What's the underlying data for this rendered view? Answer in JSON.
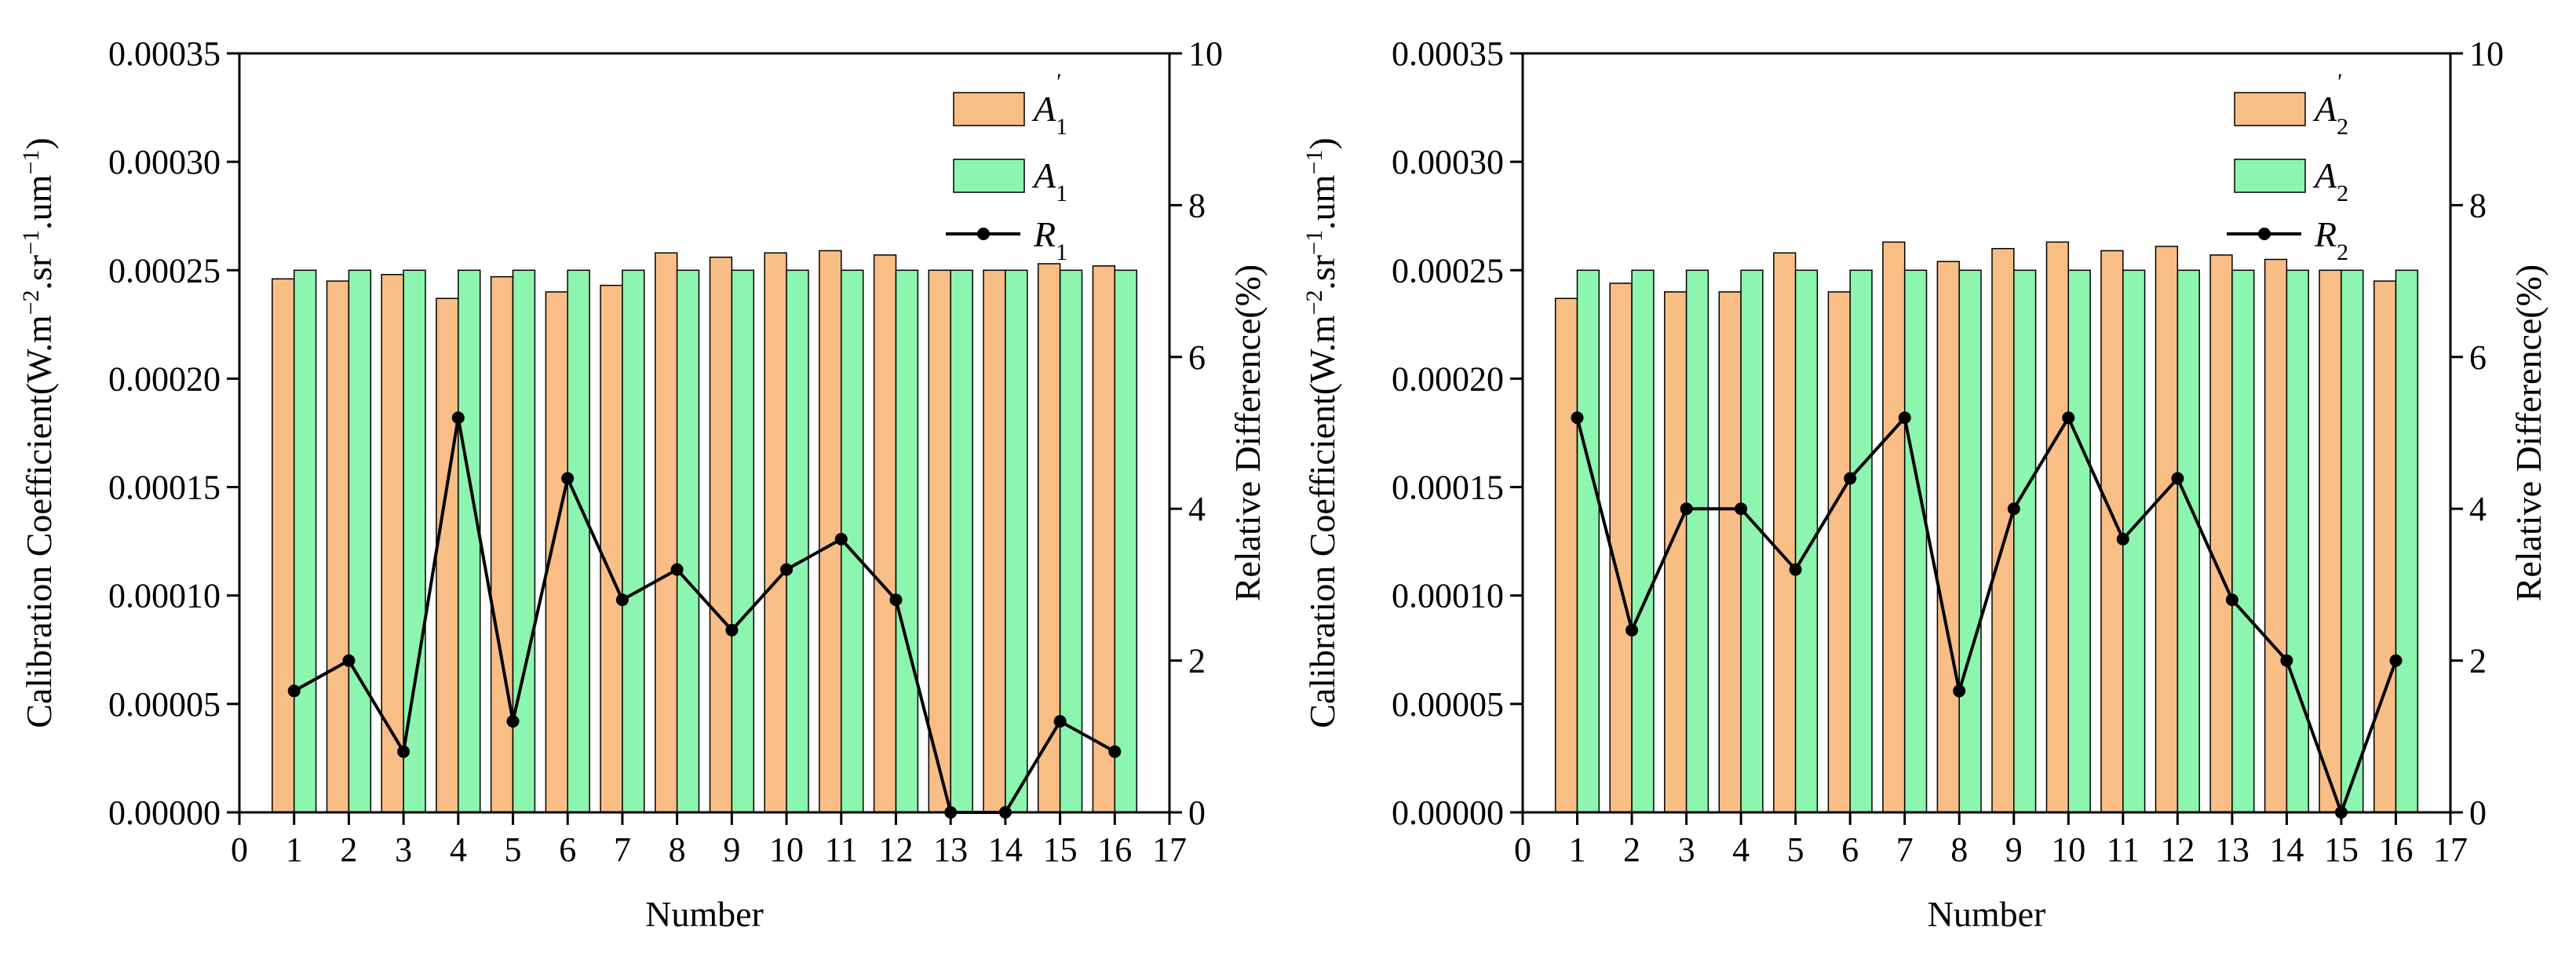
{
  "chart_data": [
    {
      "type": "bar",
      "x": [
        1,
        2,
        3,
        4,
        5,
        6,
        7,
        8,
        9,
        10,
        11,
        12,
        13,
        14,
        15,
        16
      ],
      "xlabel": "Number",
      "ylabel": "Calibration Coefficient(W.m",
      "ylabel_units": [
        "−2",
        ".sr",
        "−1",
        ".um",
        "−1",
        ")"
      ],
      "y2label": "Relative Difference(%)",
      "xlim": [
        0,
        17
      ],
      "ylim": [
        0,
        0.00035
      ],
      "y2lim": [
        0,
        10
      ],
      "x_ticks": [
        "0",
        "1",
        "2",
        "3",
        "4",
        "5",
        "6",
        "7",
        "8",
        "9",
        "10",
        "11",
        "12",
        "13",
        "14",
        "15",
        "16",
        "17"
      ],
      "y_ticks": [
        "0.00000",
        "0.00005",
        "0.00010",
        "0.00015",
        "0.00020",
        "0.00025",
        "0.00030",
        "0.00035"
      ],
      "y2_ticks": [
        "0",
        "2",
        "4",
        "6",
        "8",
        "10"
      ],
      "legend_position": "top-right",
      "series": [
        {
          "name": "A",
          "sub": "1",
          "prime": "′",
          "kind": "bar",
          "axis": "left",
          "color": "#F9BE85",
          "values": [
            0.000246,
            0.000245,
            0.000248,
            0.000237,
            0.000247,
            0.00024,
            0.000243,
            0.000258,
            0.000256,
            0.000258,
            0.000259,
            0.000257,
            0.00025,
            0.00025,
            0.000253,
            0.000252
          ]
        },
        {
          "name": "A",
          "sub": "1",
          "prime": "",
          "kind": "bar",
          "axis": "left",
          "color": "#8CF5AF",
          "values": [
            0.00025,
            0.00025,
            0.00025,
            0.00025,
            0.00025,
            0.00025,
            0.00025,
            0.00025,
            0.00025,
            0.00025,
            0.00025,
            0.00025,
            0.00025,
            0.00025,
            0.00025,
            0.00025
          ]
        },
        {
          "name": "R",
          "sub": "1",
          "prime": "",
          "kind": "line",
          "axis": "right",
          "color": "#000000",
          "values": [
            1.6,
            2.0,
            0.8,
            5.2,
            1.2,
            4.4,
            2.8,
            3.2,
            2.4,
            3.2,
            3.6,
            2.8,
            0.0,
            0.0,
            1.2,
            0.8
          ]
        }
      ]
    },
    {
      "type": "bar",
      "x": [
        1,
        2,
        3,
        4,
        5,
        6,
        7,
        8,
        9,
        10,
        11,
        12,
        13,
        14,
        15,
        16
      ],
      "xlabel": "Number",
      "ylabel": "Calibration Coefficient(W.m",
      "ylabel_units": [
        "−2",
        ".sr",
        "−1",
        ".um",
        "−1",
        ")"
      ],
      "y2label": "Relative Difference(%)",
      "xlim": [
        0,
        17
      ],
      "ylim": [
        0,
        0.00035
      ],
      "y2lim": [
        0,
        10
      ],
      "x_ticks": [
        "0",
        "1",
        "2",
        "3",
        "4",
        "5",
        "6",
        "7",
        "8",
        "9",
        "10",
        "11",
        "12",
        "13",
        "14",
        "15",
        "16",
        "17"
      ],
      "y_ticks": [
        "0.00000",
        "0.00005",
        "0.00010",
        "0.00015",
        "0.00020",
        "0.00025",
        "0.00030",
        "0.00035"
      ],
      "y2_ticks": [
        "0",
        "2",
        "4",
        "6",
        "8",
        "10"
      ],
      "legend_position": "top-right",
      "series": [
        {
          "name": "A",
          "sub": "2",
          "prime": "′",
          "kind": "bar",
          "axis": "left",
          "color": "#F9BE85",
          "values": [
            0.000237,
            0.000244,
            0.00024,
            0.00024,
            0.000258,
            0.00024,
            0.000263,
            0.000254,
            0.00026,
            0.000263,
            0.000259,
            0.000261,
            0.000257,
            0.000255,
            0.00025,
            0.000245
          ]
        },
        {
          "name": "A",
          "sub": "2",
          "prime": "",
          "kind": "bar",
          "axis": "left",
          "color": "#8CF5AF",
          "values": [
            0.00025,
            0.00025,
            0.00025,
            0.00025,
            0.00025,
            0.00025,
            0.00025,
            0.00025,
            0.00025,
            0.00025,
            0.00025,
            0.00025,
            0.00025,
            0.00025,
            0.00025,
            0.00025
          ]
        },
        {
          "name": "R",
          "sub": "2",
          "prime": "",
          "kind": "line",
          "axis": "right",
          "color": "#000000",
          "values": [
            5.2,
            2.4,
            4.0,
            4.0,
            3.2,
            4.4,
            5.2,
            1.6,
            4.0,
            5.2,
            3.6,
            4.4,
            2.8,
            2.0,
            0.0,
            2.0
          ]
        }
      ]
    }
  ]
}
